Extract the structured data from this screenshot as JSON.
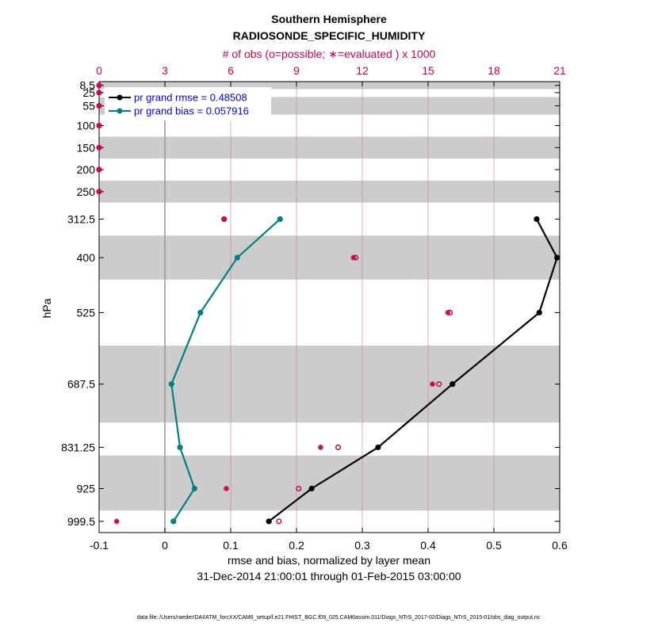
{
  "chart_data": {
    "type": "line",
    "title": "Southern Hemisphere",
    "subtitle": "RADIOSONDE_SPECIFIC_HUMIDITY",
    "top_axis_label": "# of obs (o=possible; ∗=evaluated ) x 1000",
    "xlabel": "rmse and bias, normalized by layer mean",
    "date_range": "31-Dec-2014 21:00:01 through 01-Feb-2015 03:00:00",
    "ylabel": "hPa",
    "footer": "data file: /Users/raeder/DAI/ATM_forcXX/CAM6_setup/f.e21.FHIST_BGC.f09_025.CAM6assim.011/Diags_NTrS_2017-02/Diags_NTrS_2015-01/obs_diag_output.nc",
    "xlim": [
      -0.1,
      0.6
    ],
    "xticks": [
      -0.1,
      0,
      0.1,
      0.2,
      0.3,
      0.4,
      0.5,
      0.6
    ],
    "xtick_labels": [
      "-0.1",
      "0",
      "0.1",
      "0.2",
      "0.3",
      "0.4",
      "0.5",
      "0.6"
    ],
    "top_xlim": [
      0,
      21
    ],
    "top_ticks": [
      0,
      3,
      6,
      9,
      12,
      15,
      18,
      21
    ],
    "top_tick_labels": [
      "0",
      "3",
      "6",
      "9",
      "12",
      "15",
      "18",
      "21"
    ],
    "ylim": [
      1025,
      0
    ],
    "levels": [
      8.5,
      25,
      55,
      100,
      150,
      200,
      250,
      312.5,
      400,
      525,
      687.5,
      831.25,
      925,
      999.5
    ],
    "level_labels": [
      "8.5",
      "25",
      "55",
      "100",
      "150",
      "200",
      "250",
      "312.5",
      "400",
      "525",
      "687.5",
      "831.25",
      "925",
      "999.5"
    ],
    "shaded_bands": [
      [
        0,
        17
      ],
      [
        35,
        75
      ],
      [
        125,
        175
      ],
      [
        225,
        275
      ],
      [
        350,
        450
      ],
      [
        600,
        775
      ],
      [
        850,
        975
      ]
    ],
    "legend": {
      "position": "top-left",
      "rmse_label": "pr grand rmse = 0.48508",
      "bias_label": "pr grand bias = 0.057916"
    },
    "series": [
      {
        "name": "pr grand rmse",
        "color": "#000000",
        "pressure": [
          312.5,
          400,
          525,
          687.5,
          831.25,
          925,
          999.5
        ],
        "values": [
          0.565,
          0.596,
          0.569,
          0.437,
          0.324,
          0.223,
          0.158
        ]
      },
      {
        "name": "pr grand bias",
        "color": "#008080",
        "pressure": [
          312.5,
          400,
          525,
          687.5,
          831.25,
          925,
          999.5
        ],
        "values": [
          0.175,
          0.11,
          0.054,
          0.01,
          0.023,
          0.045,
          0.013
        ]
      }
    ],
    "obs_possible": {
      "marker": "o",
      "pressure": [
        8.5,
        25,
        55,
        100,
        150,
        200,
        250,
        312.5,
        400,
        525,
        687.5,
        831.25,
        925,
        999.5
      ],
      "values": [
        0,
        0,
        0,
        0,
        0,
        0,
        0,
        5.7,
        11.7,
        16.0,
        15.5,
        10.9,
        9.1,
        8.2
      ]
    },
    "obs_evaluated": {
      "marker": "*",
      "pressure": [
        8.5,
        25,
        55,
        100,
        150,
        200,
        250,
        312.5,
        400,
        525,
        687.5,
        831.25,
        925,
        999.5
      ],
      "values": [
        0,
        0,
        0,
        0,
        0,
        0,
        0,
        5.7,
        11.6,
        15.9,
        15.2,
        10.1,
        5.8,
        0.8
      ]
    },
    "colors": {
      "accent": "#cc0055",
      "band": "#cccccc",
      "grid": "#cc7799",
      "legend_text": "#0000ee"
    }
  }
}
